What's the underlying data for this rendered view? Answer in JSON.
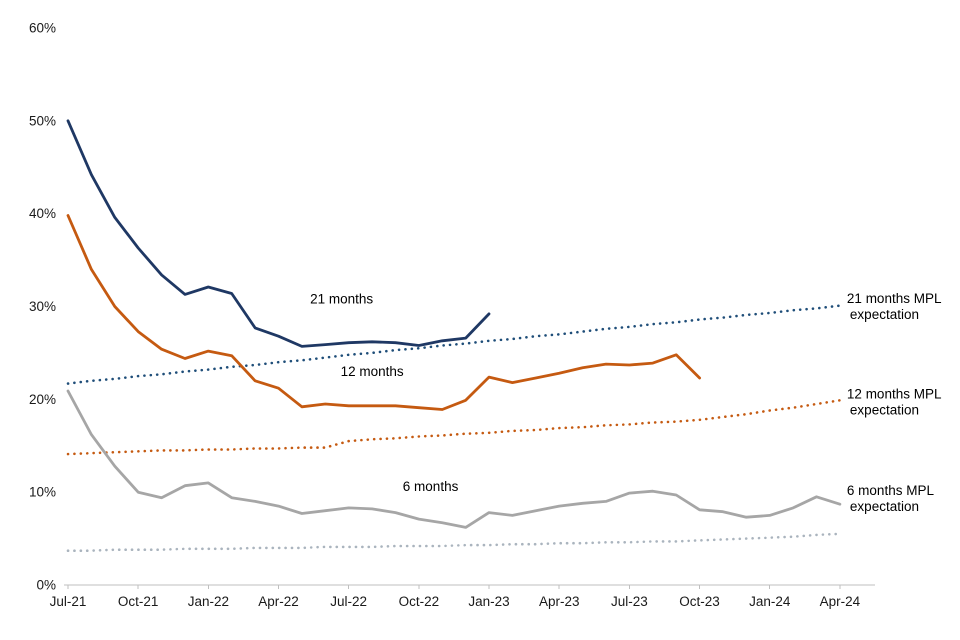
{
  "chart_data": {
    "type": "line",
    "title": "",
    "xlabel": "",
    "ylabel": "",
    "ylim": [
      0,
      60
    ],
    "yticks": [
      0,
      10,
      20,
      30,
      40,
      50,
      60
    ],
    "ytick_suffix": "%",
    "grid": false,
    "legend_position": "inline-annotations",
    "x_tick_interval_months": 3,
    "x_domain_months": 34.5,
    "x_labels": [
      "Jul-21",
      "Aug-21",
      "Sep-21",
      "Oct-21",
      "Nov-21",
      "Dec-21",
      "Jan-22",
      "Feb-22",
      "Mar-22",
      "Apr-22",
      "May-22",
      "Jun-22",
      "Jul-22",
      "Aug-22",
      "Sep-22",
      "Oct-22",
      "Nov-22",
      "Dec-22",
      "Jan-23",
      "Feb-23",
      "Mar-23",
      "Apr-23",
      "May-23",
      "Jun-23",
      "Jul-23",
      "Aug-23",
      "Sep-23",
      "Oct-23",
      "Nov-23",
      "Dec-23",
      "Jan-24",
      "Feb-24",
      "Mar-24",
      "Apr-24"
    ],
    "axis_color": "#bfbfbf",
    "series": [
      {
        "name": "21 months MPL expectation",
        "style": "dotted",
        "color": "#1f4e79",
        "width": 2.6,
        "start_month": 0,
        "values": [
          21.7,
          22.0,
          22.2,
          22.5,
          22.7,
          23.0,
          23.2,
          23.5,
          23.7,
          24.0,
          24.2,
          24.5,
          24.8,
          25.0,
          25.3,
          25.5,
          25.8,
          26.0,
          26.3,
          26.5,
          26.8,
          27.0,
          27.3,
          27.6,
          27.8,
          28.1,
          28.3,
          28.6,
          28.8,
          29.1,
          29.3,
          29.6,
          29.8,
          30.1
        ]
      },
      {
        "name": "12 months MPL expectation",
        "style": "dotted",
        "color": "#c55a11",
        "width": 2.6,
        "start_month": 0,
        "values": [
          14.1,
          14.2,
          14.3,
          14.4,
          14.5,
          14.5,
          14.6,
          14.6,
          14.7,
          14.7,
          14.8,
          14.8,
          15.5,
          15.7,
          15.8,
          16.0,
          16.1,
          16.3,
          16.4,
          16.6,
          16.7,
          16.9,
          17.0,
          17.2,
          17.3,
          17.5,
          17.6,
          17.8,
          18.1,
          18.4,
          18.8,
          19.1,
          19.5,
          19.9
        ]
      },
      {
        "name": "6 months MPL expectation",
        "style": "dotted",
        "color": "#aab4be",
        "width": 2.6,
        "start_month": 0,
        "values": [
          3.7,
          3.7,
          3.8,
          3.8,
          3.8,
          3.9,
          3.9,
          3.9,
          4.0,
          4.0,
          4.0,
          4.1,
          4.1,
          4.1,
          4.2,
          4.2,
          4.2,
          4.3,
          4.3,
          4.4,
          4.4,
          4.5,
          4.5,
          4.6,
          4.6,
          4.7,
          4.7,
          4.8,
          4.9,
          5.0,
          5.1,
          5.2,
          5.4,
          5.5
        ]
      },
      {
        "name": "21 months",
        "style": "solid",
        "color": "#1f3864",
        "width": 2.8,
        "start_month": 0,
        "values": [
          50.0,
          44.2,
          39.6,
          36.3,
          33.4,
          31.3,
          32.1,
          31.4,
          27.7,
          26.8,
          25.7,
          25.9,
          26.1,
          26.2,
          26.1,
          25.8,
          26.3,
          26.6,
          29.2
        ]
      },
      {
        "name": "12 months",
        "style": "solid",
        "color": "#c55a11",
        "width": 2.8,
        "start_month": 0,
        "values": [
          39.8,
          34.0,
          30.0,
          27.3,
          25.4,
          24.4,
          25.2,
          24.7,
          22.0,
          21.2,
          19.2,
          19.5,
          19.3,
          19.3,
          19.3,
          19.1,
          18.9,
          19.9,
          22.4,
          21.8,
          22.3,
          22.8,
          23.4,
          23.8,
          23.7,
          23.9,
          24.8,
          22.3
        ]
      },
      {
        "name": "6 months",
        "style": "solid",
        "color": "#a6a6a6",
        "width": 2.8,
        "start_month": 0,
        "values": [
          20.9,
          16.2,
          12.8,
          10.0,
          9.4,
          10.7,
          11.0,
          9.4,
          9.0,
          8.5,
          7.7,
          8.0,
          8.3,
          8.2,
          7.8,
          7.1,
          6.7,
          6.2,
          7.8,
          7.5,
          8.0,
          8.5,
          8.8,
          9.0,
          9.9,
          10.1,
          9.7,
          8.1,
          7.9,
          7.3,
          7.5,
          8.3,
          9.5,
          8.7
        ]
      }
    ],
    "annotations": [
      {
        "text": "21 months",
        "x": 11.7,
        "y": 30.3,
        "anchor": "middle"
      },
      {
        "text": "12 months",
        "x": 13.0,
        "y": 22.5,
        "anchor": "middle"
      },
      {
        "text": "6 months",
        "x": 15.5,
        "y": 10.1,
        "anchor": "middle"
      },
      {
        "text": "21 months MPL\nexpectation",
        "x": 33.3,
        "y": 30.4,
        "anchor": "start"
      },
      {
        "text": "12 months MPL\nexpectation",
        "x": 33.3,
        "y": 20.1,
        "anchor": "start"
      },
      {
        "text": "6 months MPL\nexpectation",
        "x": 33.3,
        "y": 9.7,
        "anchor": "start"
      }
    ]
  }
}
